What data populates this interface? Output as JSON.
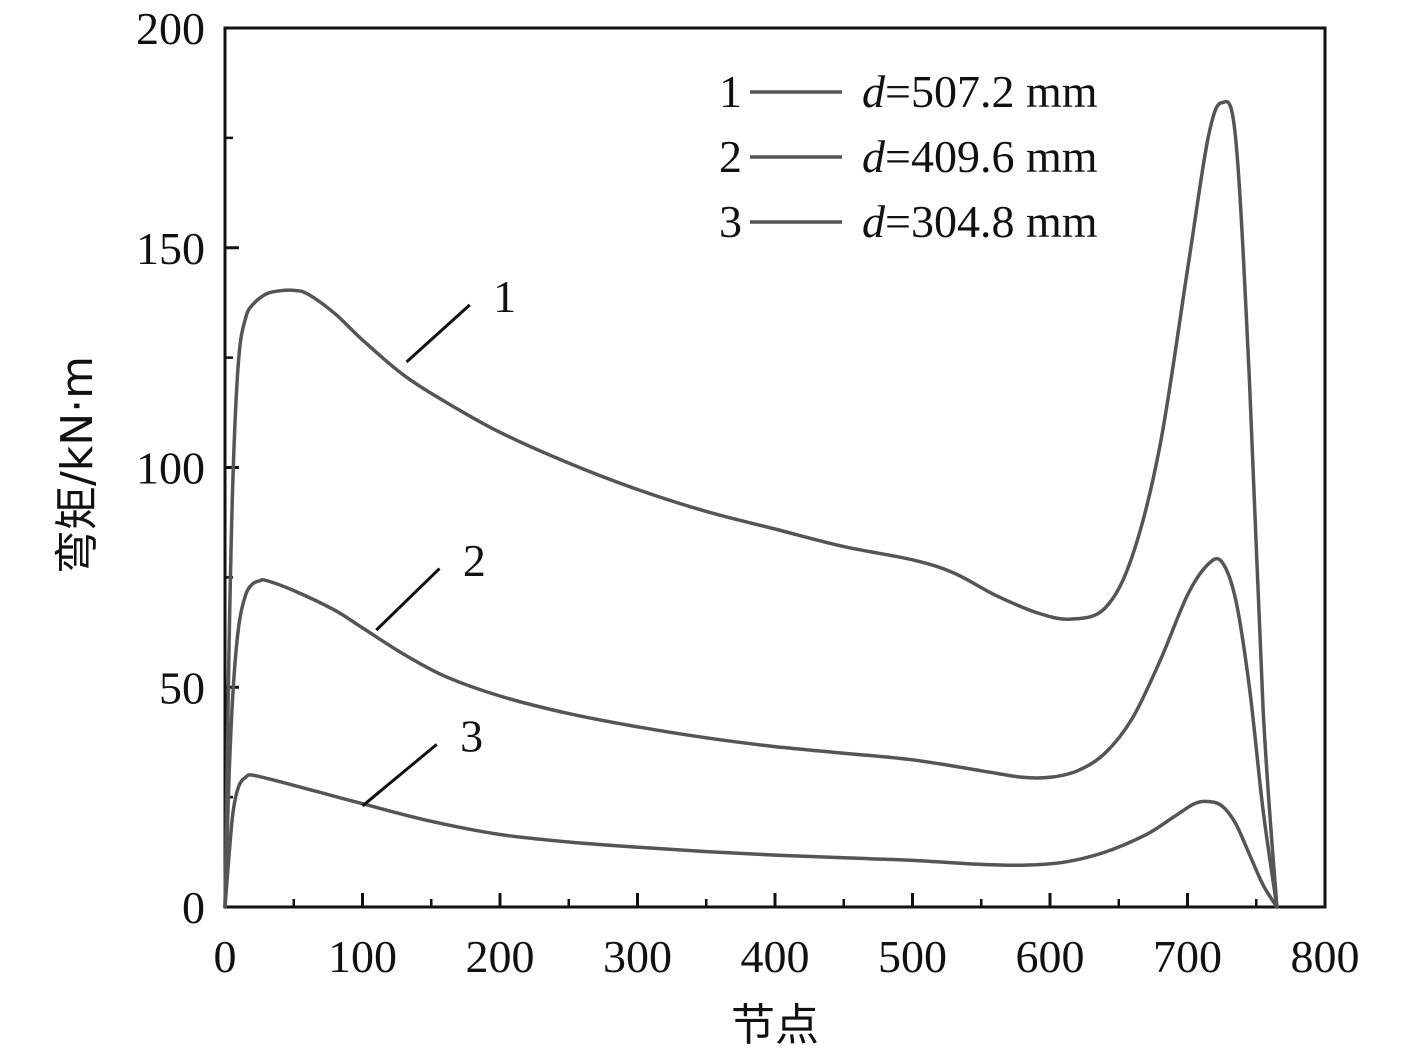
{
  "chart_data": {
    "type": "line",
    "xlabel": "节点",
    "ylabel": "弯矩/kN·m",
    "xlim": [
      0,
      800
    ],
    "ylim": [
      0,
      200
    ],
    "xticks": [
      0,
      100,
      200,
      300,
      400,
      500,
      600,
      700,
      800
    ],
    "yticks": [
      0,
      50,
      100,
      150,
      200
    ],
    "grid": false,
    "legend_position": "top-right",
    "line_color": "#555555",
    "series": [
      {
        "name": "1",
        "legend_label": "d=507.2 mm",
        "legend_d": "d",
        "legend_value": "=507.2 mm",
        "x": [
          0,
          3,
          6,
          10,
          15,
          20,
          30,
          40,
          50,
          60,
          80,
          100,
          130,
          160,
          200,
          250,
          300,
          350,
          400,
          450,
          500,
          530,
          560,
          590,
          615,
          640,
          660,
          680,
          700,
          715,
          725,
          735,
          745,
          755,
          765
        ],
        "y": [
          0,
          60,
          100,
          125,
          134,
          137,
          139.5,
          140.2,
          140.3,
          139.5,
          135,
          129,
          121,
          115,
          108,
          101,
          95,
          90,
          86,
          82,
          79,
          76,
          71,
          67,
          65.5,
          68,
          80,
          105,
          145,
          175,
          183,
          175,
          120,
          45,
          0
        ]
      },
      {
        "name": "2",
        "legend_label": "d=409.6 mm",
        "legend_d": "d",
        "legend_value": "=409.6 mm",
        "x": [
          0,
          3,
          6,
          10,
          15,
          20,
          25,
          30,
          50,
          80,
          100,
          130,
          160,
          200,
          250,
          300,
          350,
          400,
          450,
          500,
          550,
          580,
          600,
          620,
          640,
          660,
          680,
          700,
          715,
          725,
          735,
          745,
          755,
          765
        ],
        "y": [
          0,
          30,
          50,
          64,
          71,
          73.5,
          74.2,
          74.3,
          72,
          67.5,
          63.5,
          57.5,
          52.5,
          48,
          44,
          41,
          38.5,
          36.5,
          35,
          33.5,
          31,
          29.5,
          29.5,
          31,
          35,
          43,
          56,
          71,
          78,
          78.5,
          70,
          50,
          22,
          0
        ]
      },
      {
        "name": "3",
        "legend_label": "d=304.8 mm",
        "legend_d": "d",
        "legend_value": "=304.8 mm",
        "x": [
          0,
          3,
          6,
          10,
          15,
          20,
          40,
          70,
          100,
          150,
          200,
          250,
          300,
          350,
          400,
          450,
          500,
          550,
          580,
          610,
          640,
          670,
          690,
          705,
          715,
          725,
          735,
          745,
          755,
          765
        ],
        "y": [
          0,
          12,
          22,
          27.5,
          29.5,
          30,
          28.5,
          26,
          23.5,
          19.5,
          16.5,
          14.8,
          13.6,
          12.6,
          11.8,
          11.2,
          10.6,
          9.7,
          9.5,
          10.2,
          12.5,
          16.5,
          20.5,
          23.5,
          24,
          23,
          19,
          12,
          5,
          0
        ]
      }
    ],
    "annotations": [
      {
        "label": "1",
        "series": "1"
      },
      {
        "label": "2",
        "series": "2"
      },
      {
        "label": "3",
        "series": "3"
      }
    ]
  }
}
